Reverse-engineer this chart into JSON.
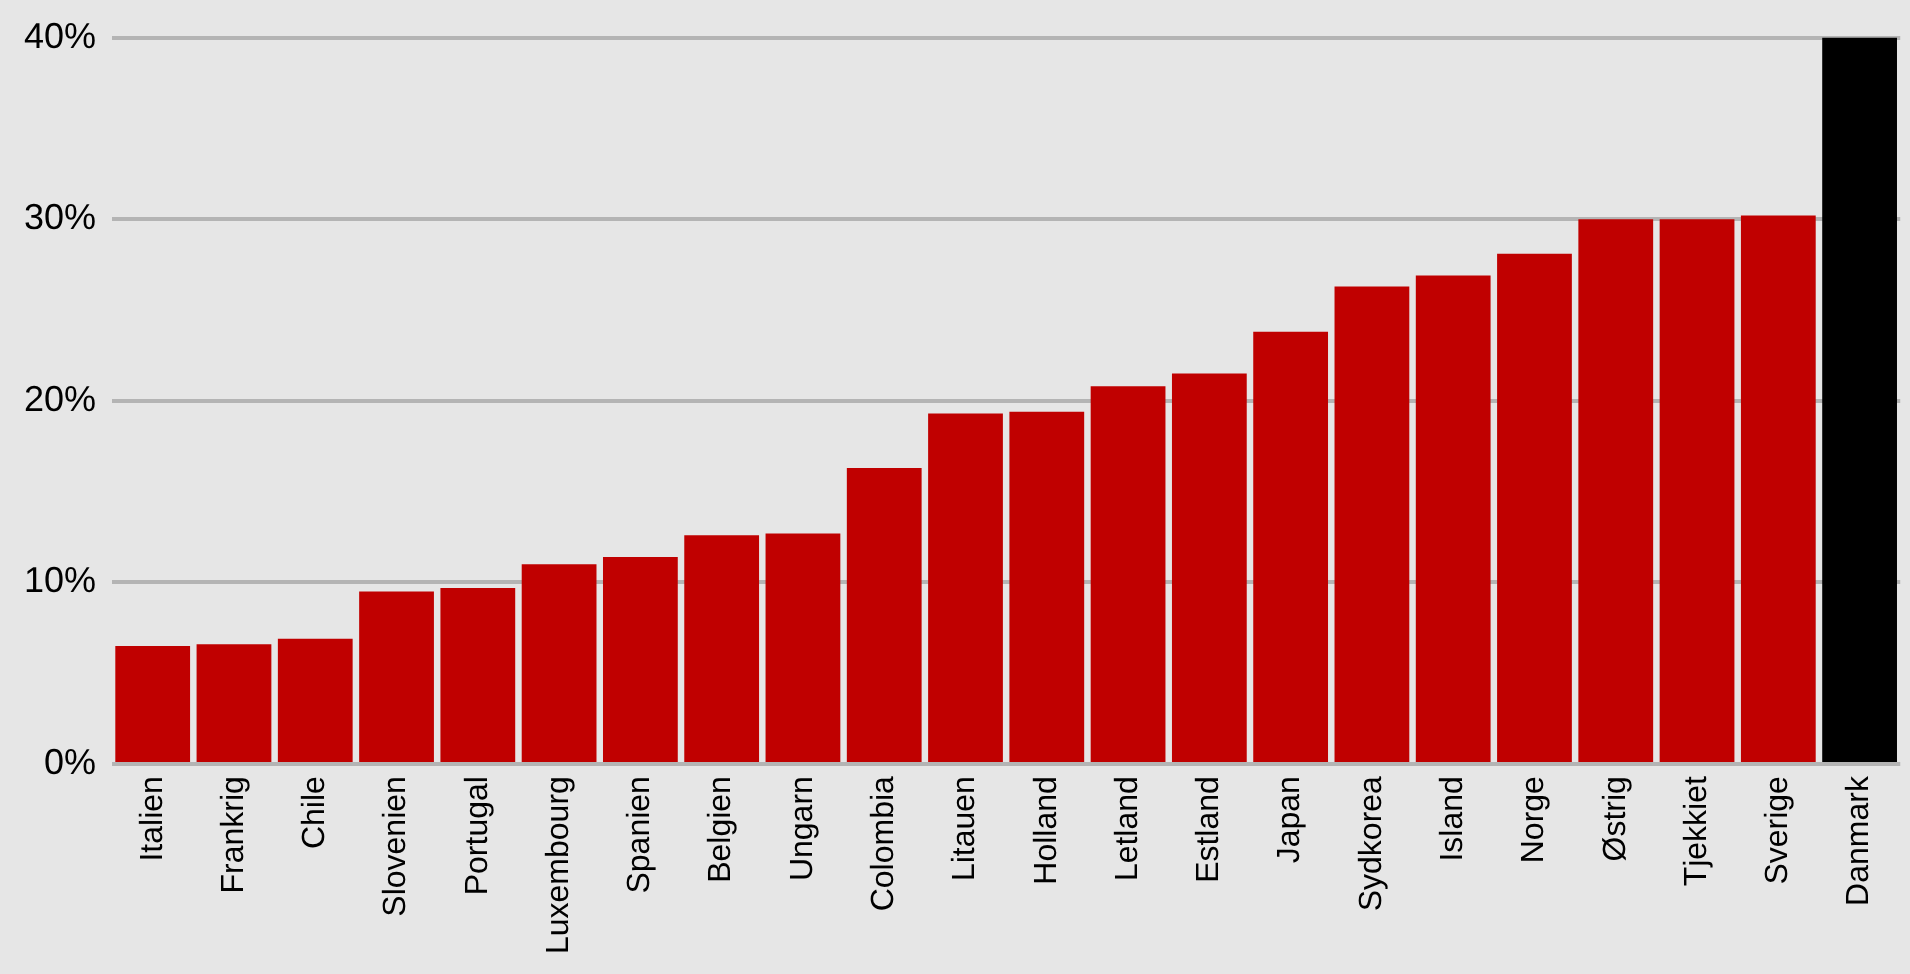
{
  "chart_data": {
    "type": "bar",
    "categories": [
      "Italien",
      "Frankrig",
      "Chile",
      "Slovenien",
      "Portugal",
      "Luxembourg",
      "Spanien",
      "Belgien",
      "Ungarn",
      "Colombia",
      "Litauen",
      "Holland",
      "Letland",
      "Estland",
      "Japan",
      "Sydkorea",
      "Island",
      "Norge",
      "Østrig",
      "Tjekkiet",
      "Sverige",
      "Danmark"
    ],
    "values": [
      6.5,
      6.6,
      6.9,
      9.5,
      9.7,
      11.0,
      11.4,
      12.6,
      12.7,
      16.3,
      19.3,
      19.4,
      20.8,
      21.5,
      23.8,
      26.3,
      26.9,
      28.1,
      30.0,
      30.0,
      30.2,
      40.0
    ],
    "colors": [
      "#c00000",
      "#c00000",
      "#c00000",
      "#c00000",
      "#c00000",
      "#c00000",
      "#c00000",
      "#c00000",
      "#c00000",
      "#c00000",
      "#c00000",
      "#c00000",
      "#c00000",
      "#c00000",
      "#c00000",
      "#c00000",
      "#c00000",
      "#c00000",
      "#c00000",
      "#c00000",
      "#c00000",
      "#000000"
    ],
    "ylim": [
      0,
      40
    ],
    "yticks": [
      {
        "value": 0,
        "label": "0%"
      },
      {
        "value": 10,
        "label": "10%"
      },
      {
        "value": 20,
        "label": "20%"
      },
      {
        "value": 30,
        "label": "30%"
      },
      {
        "value": 40,
        "label": "40%"
      }
    ],
    "grid": "y"
  }
}
